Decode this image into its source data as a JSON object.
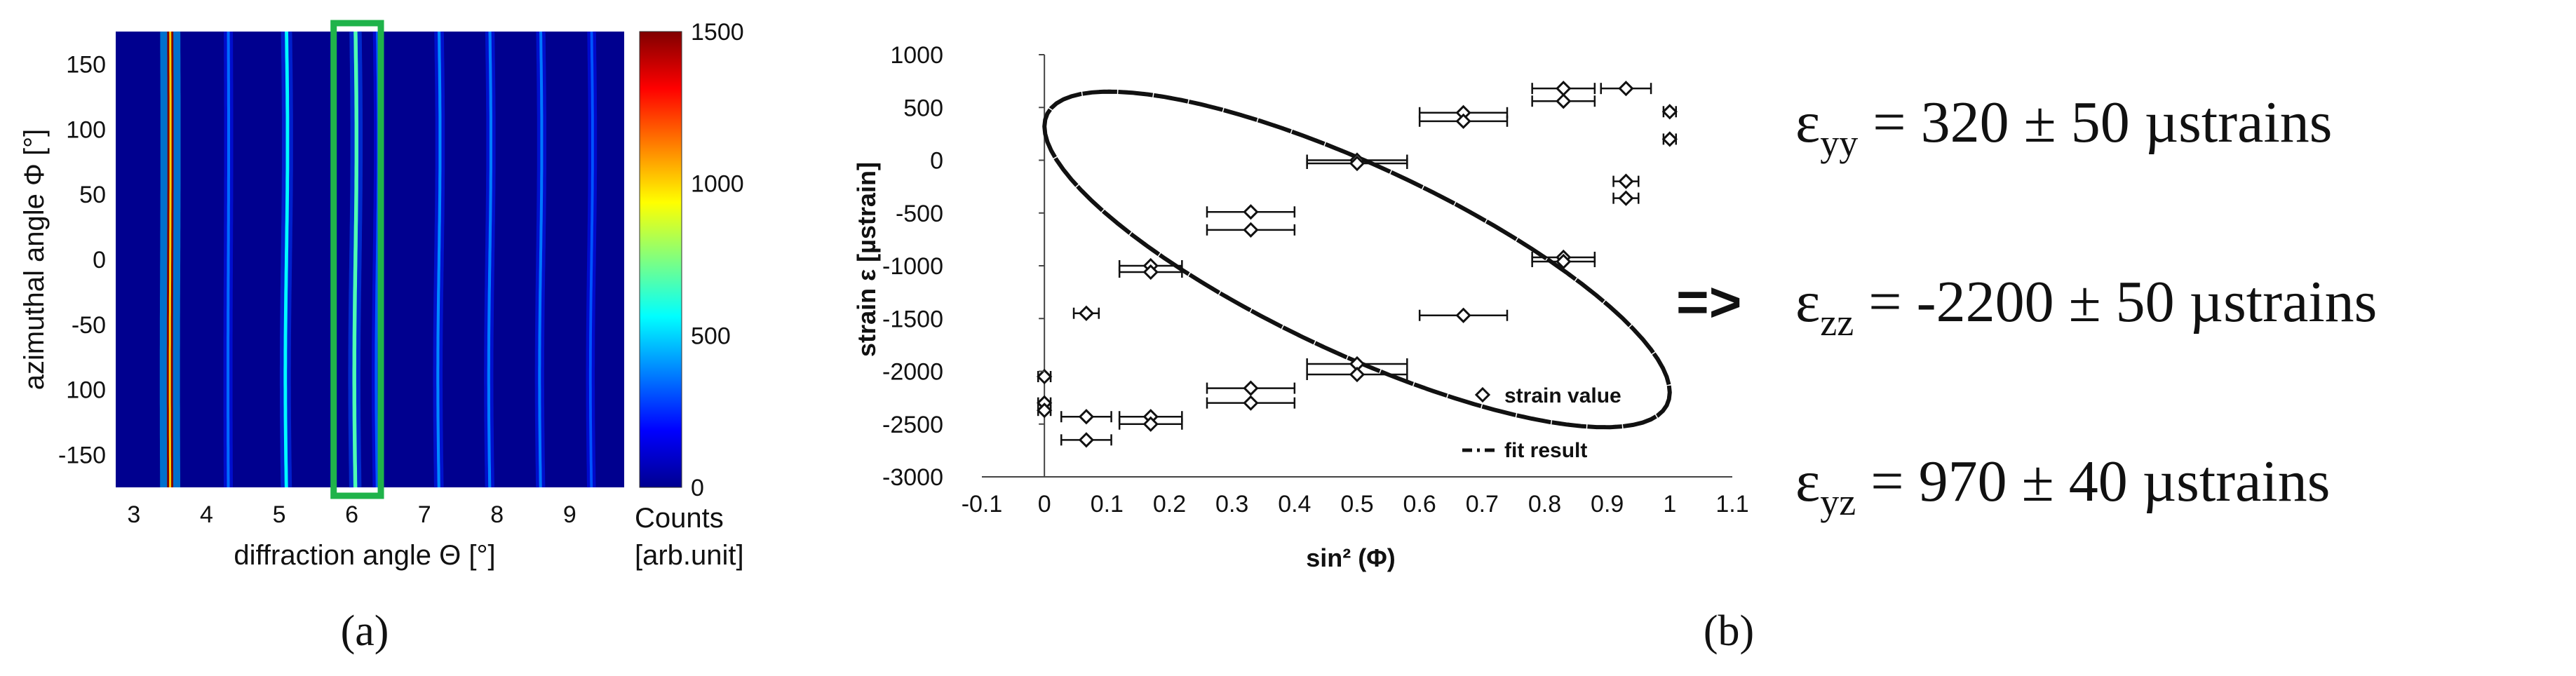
{
  "chart_data": [
    {
      "type": "heatmap",
      "panel_label": "(a)",
      "xlabel": "diffraction angle Θ [°]",
      "ylabel": "azimuthal angle Φ [°]",
      "xlim": [
        2.75,
        9.75
      ],
      "ylim": [
        -175,
        175
      ],
      "xticks": [
        "3",
        "4",
        "5",
        "6",
        "7",
        "8",
        "9"
      ],
      "yticks": [
        "150",
        "100",
        "50",
        "0",
        "-50",
        "100",
        "-150"
      ],
      "lines": [
        {
          "theta": 3.5,
          "intensity": 1500
        },
        {
          "theta": 4.3,
          "intensity": 180
        },
        {
          "theta": 5.1,
          "intensity": 420
        },
        {
          "theta": 6.05,
          "intensity": 560
        },
        {
          "theta": 6.35,
          "intensity": 150
        },
        {
          "theta": 7.2,
          "intensity": 230
        },
        {
          "theta": 7.9,
          "intensity": 210
        },
        {
          "theta": 8.6,
          "intensity": 200
        },
        {
          "theta": 9.3,
          "intensity": 140
        }
      ],
      "highlight_box": {
        "theta_range": [
          5.75,
          6.4
        ],
        "color": "#1fb34a"
      },
      "colorbar": {
        "range": [
          0,
          1500
        ],
        "ticks": [
          "1500",
          "1000",
          "500",
          "0"
        ],
        "label_line1": "Counts",
        "label_line2": "[arb.unit]"
      }
    },
    {
      "type": "scatter",
      "panel_label": "(b)",
      "xlabel": "sin² (Φ)",
      "ylabel": "strain ε [µstrain]",
      "xlim": [
        -0.1,
        1.1
      ],
      "ylim": [
        -3000,
        1000
      ],
      "xticks": [
        "-0.1",
        "0",
        "0.1",
        "0.2",
        "0.3",
        "0.4",
        "0.5",
        "0.6",
        "0.7",
        "0.8",
        "0.9",
        "1",
        "1.1"
      ],
      "yticks": [
        "1000",
        "500",
        "0",
        "-500",
        "-1000",
        "-1500",
        "-2000",
        "-2500",
        "-3000"
      ],
      "legend": {
        "strain": "strain value",
        "fit": "fit result",
        "position": "bottom-right"
      },
      "points": [
        {
          "x": 0.0,
          "y": -2050,
          "xerr": 0.01
        },
        {
          "x": 0.0,
          "y": -2300,
          "xerr": 0.01
        },
        {
          "x": 0.0,
          "y": -2370,
          "xerr": 0.01
        },
        {
          "x": 0.067,
          "y": -1450,
          "xerr": 0.02
        },
        {
          "x": 0.067,
          "y": -2430,
          "xerr": 0.04
        },
        {
          "x": 0.067,
          "y": -2650,
          "xerr": 0.04
        },
        {
          "x": 0.17,
          "y": -1000,
          "xerr": 0.05
        },
        {
          "x": 0.17,
          "y": -1060,
          "xerr": 0.05
        },
        {
          "x": 0.17,
          "y": -2430,
          "xerr": 0.05
        },
        {
          "x": 0.17,
          "y": -2500,
          "xerr": 0.05
        },
        {
          "x": 0.33,
          "y": -490,
          "xerr": 0.07
        },
        {
          "x": 0.33,
          "y": -660,
          "xerr": 0.07
        },
        {
          "x": 0.33,
          "y": -2160,
          "xerr": 0.07
        },
        {
          "x": 0.33,
          "y": -2300,
          "xerr": 0.07
        },
        {
          "x": 0.5,
          "y": 0,
          "xerr": 0.08
        },
        {
          "x": 0.5,
          "y": -30,
          "xerr": 0.08
        },
        {
          "x": 0.5,
          "y": -1930,
          "xerr": 0.08
        },
        {
          "x": 0.5,
          "y": -2030,
          "xerr": 0.08
        },
        {
          "x": 0.67,
          "y": 450,
          "xerr": 0.07
        },
        {
          "x": 0.67,
          "y": 370,
          "xerr": 0.07
        },
        {
          "x": 0.67,
          "y": -1470,
          "xerr": 0.07
        },
        {
          "x": 0.83,
          "y": 680,
          "xerr": 0.05
        },
        {
          "x": 0.83,
          "y": 560,
          "xerr": 0.05
        },
        {
          "x": 0.83,
          "y": -920,
          "xerr": 0.05
        },
        {
          "x": 0.83,
          "y": -960,
          "xerr": 0.05
        },
        {
          "x": 0.93,
          "y": 680,
          "xerr": 0.04
        },
        {
          "x": 0.93,
          "y": -200,
          "xerr": 0.02
        },
        {
          "x": 0.93,
          "y": -360,
          "xerr": 0.02
        },
        {
          "x": 1.0,
          "y": 460,
          "xerr": 0.01
        },
        {
          "x": 1.0,
          "y": 200,
          "xerr": 0.01
        }
      ],
      "fit": {
        "eps_yy": 320,
        "eps_zz": -2200,
        "eps_yz": 970
      }
    }
  ],
  "arrow": "=>",
  "results": [
    {
      "symbol": "ε",
      "sub": "yy",
      "text": " =  320 ± 50 µstrains"
    },
    {
      "symbol": "ε",
      "sub": "zz",
      "text": " =  -2200 ± 50 µstrains"
    },
    {
      "symbol": "ε",
      "sub": "yz",
      "text": " =  970 ± 40 µstrains"
    }
  ]
}
